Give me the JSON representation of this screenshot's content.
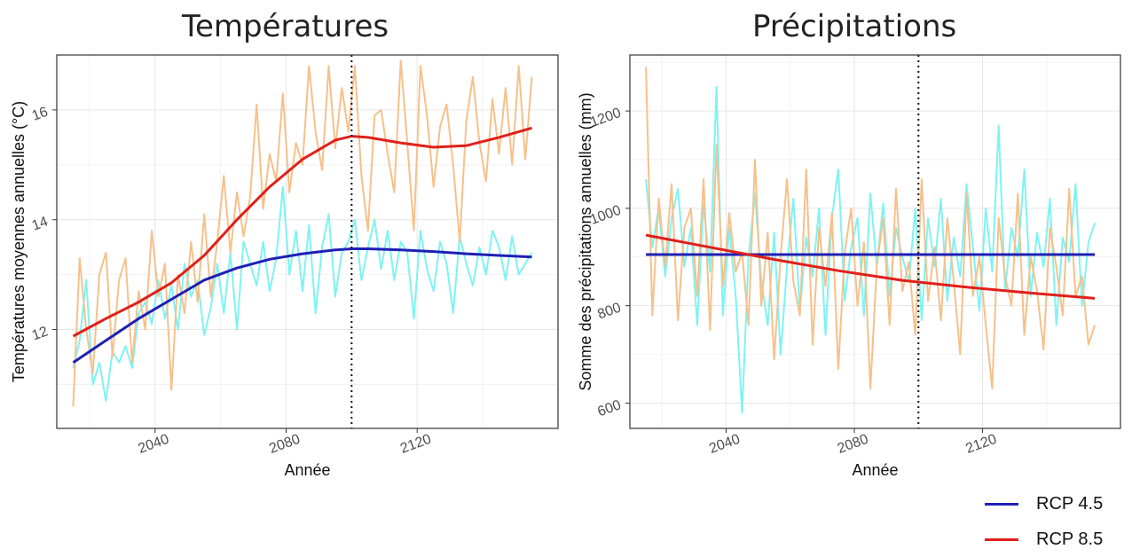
{
  "colors": {
    "rcp45_trend": "#1f1fb4",
    "rcp85_trend": "#e0201b",
    "rcp45_raw": "#7ef3f3",
    "rcp85_raw": "#f7c08a",
    "grid": "#e6e6e6",
    "frame": "#333333"
  },
  "legend": {
    "items": [
      {
        "label": "RCP 4.5",
        "color": "#1f1fb4"
      },
      {
        "label": "RCP 8.5",
        "color": "#e0201b"
      }
    ]
  },
  "chart_data": [
    {
      "type": "line",
      "title": "Températures",
      "xlabel": "Année",
      "ylabel": "Températures moyennes annuelles (°C)",
      "xlim": [
        2010,
        2163
      ],
      "ylim": [
        10.2,
        17.0
      ],
      "xticks": [
        2040,
        2080,
        2120
      ],
      "yticks": [
        12,
        14,
        16
      ],
      "vline": 2100,
      "series": [
        {
          "name": "RCP 4.5",
          "kind": "trend",
          "x": [
            2015,
            2025,
            2035,
            2045,
            2055,
            2065,
            2075,
            2085,
            2095,
            2100,
            2105,
            2115,
            2125,
            2135,
            2145,
            2155
          ],
          "y": [
            11.4,
            11.8,
            12.2,
            12.55,
            12.9,
            13.12,
            13.28,
            13.38,
            13.45,
            13.47,
            13.47,
            13.45,
            13.42,
            13.38,
            13.35,
            13.32
          ]
        },
        {
          "name": "RCP 8.5",
          "kind": "trend",
          "x": [
            2015,
            2025,
            2035,
            2045,
            2055,
            2065,
            2075,
            2085,
            2095,
            2100,
            2105,
            2115,
            2125,
            2135,
            2145,
            2155
          ],
          "y": [
            11.88,
            12.2,
            12.5,
            12.85,
            13.35,
            14.0,
            14.6,
            15.1,
            15.45,
            15.52,
            15.5,
            15.4,
            15.32,
            15.35,
            15.5,
            15.67
          ]
        },
        {
          "name": "RCP 4.5",
          "kind": "annual",
          "x": [
            2015,
            2017,
            2019,
            2021,
            2023,
            2025,
            2027,
            2029,
            2031,
            2033,
            2035,
            2037,
            2039,
            2041,
            2043,
            2045,
            2047,
            2049,
            2051,
            2053,
            2055,
            2057,
            2059,
            2061,
            2063,
            2065,
            2067,
            2069,
            2071,
            2073,
            2075,
            2077,
            2079,
            2081,
            2083,
            2085,
            2087,
            2089,
            2091,
            2093,
            2095,
            2097,
            2099,
            2101,
            2103,
            2105,
            2107,
            2109,
            2111,
            2113,
            2115,
            2117,
            2119,
            2121,
            2123,
            2125,
            2127,
            2129,
            2131,
            2133,
            2135,
            2137,
            2139,
            2141,
            2143,
            2145,
            2147,
            2149,
            2151,
            2153,
            2155
          ],
          "y": [
            11.3,
            11.8,
            12.9,
            11.0,
            11.4,
            10.7,
            11.6,
            11.4,
            11.7,
            11.3,
            12.3,
            12.5,
            12.1,
            12.9,
            12.2,
            12.8,
            12.0,
            13.2,
            12.6,
            12.9,
            11.9,
            12.4,
            13.2,
            12.3,
            13.4,
            12.0,
            13.6,
            13.2,
            12.8,
            13.6,
            12.7,
            13.3,
            14.6,
            13.0,
            13.8,
            12.7,
            13.9,
            12.3,
            13.5,
            14.1,
            12.6,
            13.4,
            13.6,
            14.0,
            12.9,
            13.5,
            14.0,
            13.1,
            13.8,
            12.9,
            13.6,
            13.4,
            12.2,
            13.8,
            13.1,
            12.7,
            13.6,
            13.2,
            12.3,
            13.7,
            13.2,
            12.8,
            13.5,
            13.0,
            13.8,
            13.5,
            12.9,
            13.7,
            13.0,
            13.2,
            13.4
          ]
        },
        {
          "name": "RCP 8.5",
          "kind": "annual",
          "x": [
            2015,
            2017,
            2019,
            2021,
            2023,
            2025,
            2027,
            2029,
            2031,
            2033,
            2035,
            2037,
            2039,
            2041,
            2043,
            2045,
            2047,
            2049,
            2051,
            2053,
            2055,
            2057,
            2059,
            2061,
            2063,
            2065,
            2067,
            2069,
            2071,
            2073,
            2075,
            2077,
            2079,
            2081,
            2083,
            2085,
            2087,
            2089,
            2091,
            2093,
            2095,
            2097,
            2099,
            2101,
            2103,
            2105,
            2107,
            2109,
            2111,
            2113,
            2115,
            2117,
            2119,
            2121,
            2123,
            2125,
            2127,
            2129,
            2131,
            2133,
            2135,
            2137,
            2139,
            2141,
            2143,
            2145,
            2147,
            2149,
            2151,
            2153,
            2155
          ],
          "y": [
            10.6,
            13.3,
            12.0,
            11.2,
            13.0,
            13.4,
            11.5,
            12.9,
            13.3,
            11.4,
            12.7,
            12.0,
            13.8,
            12.6,
            13.2,
            10.9,
            13.0,
            12.3,
            13.6,
            12.5,
            14.1,
            12.6,
            13.6,
            14.8,
            13.4,
            14.5,
            13.7,
            14.4,
            16.1,
            14.2,
            15.2,
            14.7,
            16.3,
            14.5,
            15.4,
            15.0,
            16.8,
            15.6,
            14.9,
            16.8,
            15.3,
            16.4,
            15.6,
            16.8,
            14.8,
            13.8,
            15.9,
            16.0,
            15.2,
            14.5,
            16.9,
            15.4,
            13.8,
            16.8,
            15.9,
            14.6,
            15.7,
            16.1,
            15.0,
            13.6,
            15.8,
            16.6,
            15.4,
            14.7,
            16.2,
            15.2,
            16.4,
            15.0,
            16.8,
            15.1,
            16.6
          ]
        }
      ]
    },
    {
      "type": "line",
      "title": "Précipitations",
      "xlabel": "Année",
      "ylabel": "Somme des précipitations annuelles (mm)",
      "xlim": [
        2010,
        2163
      ],
      "ylim": [
        548,
        1315
      ],
      "xticks": [
        2040,
        2080,
        2120
      ],
      "yticks": [
        600,
        800,
        1000,
        1200
      ],
      "vline": 2100,
      "series": [
        {
          "name": "RCP 4.5",
          "kind": "trend",
          "x": [
            2015,
            2155
          ],
          "y": [
            905,
            905
          ]
        },
        {
          "name": "RCP 8.5",
          "kind": "trend",
          "x": [
            2015,
            2035,
            2055,
            2075,
            2095,
            2115,
            2135,
            2155
          ],
          "y": [
            945,
            920,
            895,
            872,
            852,
            838,
            826,
            815
          ]
        },
        {
          "name": "RCP 4.5",
          "kind": "annual",
          "x": [
            2015,
            2017,
            2019,
            2021,
            2023,
            2025,
            2027,
            2029,
            2031,
            2033,
            2035,
            2037,
            2039,
            2041,
            2043,
            2045,
            2047,
            2049,
            2051,
            2053,
            2055,
            2057,
            2059,
            2061,
            2063,
            2065,
            2067,
            2069,
            2071,
            2073,
            2075,
            2077,
            2079,
            2081,
            2083,
            2085,
            2087,
            2089,
            2091,
            2093,
            2095,
            2097,
            2099,
            2101,
            2103,
            2105,
            2107,
            2109,
            2111,
            2113,
            2115,
            2117,
            2119,
            2121,
            2123,
            2125,
            2127,
            2129,
            2131,
            2133,
            2135,
            2137,
            2139,
            2141,
            2143,
            2145,
            2147,
            2149,
            2151,
            2153,
            2155
          ],
          "y": [
            1060,
            920,
            1000,
            860,
            980,
            1040,
            880,
            960,
            760,
            1010,
            870,
            1250,
            780,
            960,
            820,
            580,
            900,
            1030,
            850,
            760,
            950,
            700,
            880,
            1020,
            790,
            940,
            860,
            1000,
            740,
            980,
            1080,
            810,
            920,
            980,
            780,
            1030,
            880,
            1010,
            820,
            960,
            900,
            850,
            1000,
            770,
            980,
            880,
            1020,
            810,
            940,
            860,
            1050,
            920,
            790,
            1000,
            870,
            1170,
            830,
            960,
            900,
            1080,
            820,
            950,
            880,
            1020,
            760,
            940,
            890,
            1050,
            800,
            930,
            970
          ]
        },
        {
          "name": "RCP 8.5",
          "kind": "annual",
          "x": [
            2015,
            2017,
            2019,
            2021,
            2023,
            2025,
            2027,
            2029,
            2031,
            2033,
            2035,
            2037,
            2039,
            2041,
            2043,
            2045,
            2047,
            2049,
            2051,
            2053,
            2055,
            2057,
            2059,
            2061,
            2063,
            2065,
            2067,
            2069,
            2071,
            2073,
            2075,
            2077,
            2079,
            2081,
            2083,
            2085,
            2087,
            2089,
            2091,
            2093,
            2095,
            2097,
            2099,
            2101,
            2103,
            2105,
            2107,
            2109,
            2111,
            2113,
            2115,
            2117,
            2119,
            2121,
            2123,
            2125,
            2127,
            2129,
            2131,
            2133,
            2135,
            2137,
            2139,
            2141,
            2143,
            2145,
            2147,
            2149,
            2151,
            2153,
            2155
          ],
          "y": [
            1290,
            780,
            1020,
            880,
            1050,
            770,
            960,
            1000,
            820,
            1060,
            750,
            1130,
            840,
            990,
            870,
            910,
            760,
            1100,
            800,
            950,
            690,
            900,
            1060,
            850,
            780,
            1080,
            720,
            960,
            840,
            990,
            670,
            910,
            1000,
            800,
            930,
            630,
            880,
            980,
            760,
            1040,
            830,
            890,
            740,
            1060,
            810,
            920,
            770,
            980,
            850,
            700,
            1030,
            820,
            900,
            760,
            630,
            980,
            860,
            800,
            1030,
            740,
            900,
            830,
            710,
            960,
            880,
            780,
            1040,
            820,
            860,
            720,
            760
          ]
        }
      ]
    }
  ]
}
